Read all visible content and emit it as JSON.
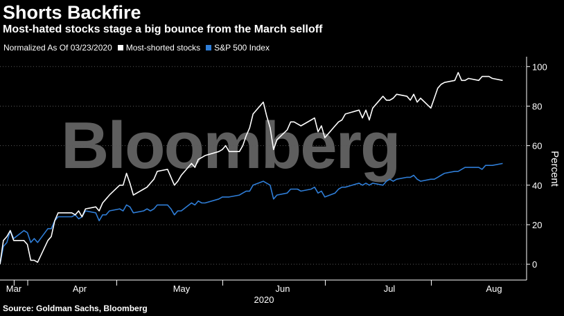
{
  "header": {
    "title": "Shorts Backfire",
    "subtitle": "Most-hated stocks stage a big bounce from the March selloff"
  },
  "legend": {
    "note": "Normalized As Of 03/23/2020",
    "series1": "Most-shorted stocks",
    "series2": "S&P 500 Index"
  },
  "source": "Source: Goldman Sachs, Bloomberg",
  "watermark": "Bloomberg",
  "colors": {
    "background": "#000000",
    "most_shorted": "#ffffff",
    "sp500": "#2f7ed8",
    "grid": "#5a5a5a"
  },
  "chart_data": {
    "type": "line",
    "title": "Shorts Backfire",
    "subtitle": "Most-hated stocks stage a big bounce from the March selloff",
    "xlabel": "2020",
    "ylabel": "Percent",
    "x_tick_labels": [
      "Mar",
      "Apr",
      "May",
      "Jun",
      "Jul",
      "Aug"
    ],
    "x_tick_dates": [
      "2020-03-23",
      "2020-04-01",
      "2020-05-01",
      "2020-06-01",
      "2020-07-01",
      "2020-08-01"
    ],
    "y_axis_position": "right",
    "y_ticks": [
      0,
      20,
      40,
      60,
      80,
      100
    ],
    "ylim": [
      -8,
      105
    ],
    "xlim": [
      "2020-03-23",
      "2020-08-24"
    ],
    "grid": "horizontal dotted",
    "legend_position": "top-left",
    "series": [
      {
        "name": "Most-shorted stocks",
        "color": "#ffffff",
        "points": [
          [
            "2020-03-23",
            0
          ],
          [
            "2020-03-24",
            12
          ],
          [
            "2020-03-25",
            14
          ],
          [
            "2020-03-26",
            17
          ],
          [
            "2020-03-27",
            12
          ],
          [
            "2020-03-30",
            12
          ],
          [
            "2020-03-31",
            10
          ],
          [
            "2020-04-01",
            2
          ],
          [
            "2020-04-02",
            2
          ],
          [
            "2020-04-03",
            1
          ],
          [
            "2020-04-06",
            12
          ],
          [
            "2020-04-07",
            14
          ],
          [
            "2020-04-08",
            22
          ],
          [
            "2020-04-09",
            26
          ],
          [
            "2020-04-13",
            26
          ],
          [
            "2020-04-14",
            25
          ],
          [
            "2020-04-15",
            27
          ],
          [
            "2020-04-16",
            24
          ],
          [
            "2020-04-17",
            28
          ],
          [
            "2020-04-20",
            29
          ],
          [
            "2020-04-21",
            27
          ],
          [
            "2020-04-22",
            31
          ],
          [
            "2020-04-23",
            33
          ],
          [
            "2020-04-24",
            35
          ],
          [
            "2020-04-27",
            40
          ],
          [
            "2020-04-28",
            40
          ],
          [
            "2020-04-29",
            46
          ],
          [
            "2020-04-30",
            41
          ],
          [
            "2020-05-01",
            35
          ],
          [
            "2020-05-04",
            38
          ],
          [
            "2020-05-05",
            39
          ],
          [
            "2020-05-06",
            41
          ],
          [
            "2020-05-07",
            43
          ],
          [
            "2020-05-08",
            47
          ],
          [
            "2020-05-11",
            48
          ],
          [
            "2020-05-12",
            44
          ],
          [
            "2020-05-13",
            40
          ],
          [
            "2020-05-14",
            42
          ],
          [
            "2020-05-15",
            45
          ],
          [
            "2020-05-18",
            51
          ],
          [
            "2020-05-19",
            49
          ],
          [
            "2020-05-20",
            53
          ],
          [
            "2020-05-21",
            54
          ],
          [
            "2020-05-22",
            55
          ],
          [
            "2020-05-26",
            57
          ],
          [
            "2020-05-27",
            58
          ],
          [
            "2020-05-28",
            60
          ],
          [
            "2020-05-29",
            57
          ],
          [
            "2020-06-01",
            57
          ],
          [
            "2020-06-02",
            60
          ],
          [
            "2020-06-03",
            65
          ],
          [
            "2020-06-04",
            69
          ],
          [
            "2020-06-05",
            76
          ],
          [
            "2020-06-08",
            82
          ],
          [
            "2020-06-09",
            75
          ],
          [
            "2020-06-10",
            69
          ],
          [
            "2020-06-11",
            58
          ],
          [
            "2020-06-12",
            63
          ],
          [
            "2020-06-15",
            68
          ],
          [
            "2020-06-16",
            72
          ],
          [
            "2020-06-17",
            72
          ],
          [
            "2020-06-18",
            71
          ],
          [
            "2020-06-19",
            70
          ],
          [
            "2020-06-22",
            73
          ],
          [
            "2020-06-23",
            74
          ],
          [
            "2020-06-24",
            67
          ],
          [
            "2020-06-25",
            70
          ],
          [
            "2020-06-26",
            64
          ],
          [
            "2020-06-29",
            70
          ],
          [
            "2020-06-30",
            72
          ],
          [
            "2020-07-01",
            73
          ],
          [
            "2020-07-02",
            76
          ],
          [
            "2020-07-06",
            78
          ],
          [
            "2020-07-07",
            74
          ],
          [
            "2020-07-08",
            78
          ],
          [
            "2020-07-09",
            73
          ],
          [
            "2020-07-10",
            79
          ],
          [
            "2020-07-13",
            85
          ],
          [
            "2020-07-14",
            83
          ],
          [
            "2020-07-15",
            83
          ],
          [
            "2020-07-16",
            84
          ],
          [
            "2020-07-17",
            86
          ],
          [
            "2020-07-20",
            85
          ],
          [
            "2020-07-21",
            83
          ],
          [
            "2020-07-22",
            86
          ],
          [
            "2020-07-23",
            82
          ],
          [
            "2020-07-24",
            84
          ],
          [
            "2020-07-27",
            79
          ],
          [
            "2020-07-28",
            84
          ],
          [
            "2020-07-29",
            89
          ],
          [
            "2020-07-30",
            91
          ],
          [
            "2020-07-31",
            92
          ],
          [
            "2020-08-03",
            93
          ],
          [
            "2020-08-04",
            97
          ],
          [
            "2020-08-05",
            93
          ],
          [
            "2020-08-06",
            93
          ],
          [
            "2020-08-07",
            94
          ],
          [
            "2020-08-10",
            93
          ],
          [
            "2020-08-11",
            95
          ],
          [
            "2020-08-12",
            95
          ],
          [
            "2020-08-13",
            95
          ],
          [
            "2020-08-14",
            94
          ],
          [
            "2020-08-17",
            93
          ]
        ]
      },
      {
        "name": "S&P 500 Index",
        "color": "#2f7ed8",
        "points": [
          [
            "2020-03-23",
            0
          ],
          [
            "2020-03-24",
            9
          ],
          [
            "2020-03-25",
            11
          ],
          [
            "2020-03-26",
            17
          ],
          [
            "2020-03-27",
            13
          ],
          [
            "2020-03-30",
            17
          ],
          [
            "2020-03-31",
            16
          ],
          [
            "2020-04-01",
            11
          ],
          [
            "2020-04-02",
            13
          ],
          [
            "2020-04-03",
            11
          ],
          [
            "2020-04-06",
            18
          ],
          [
            "2020-04-07",
            18
          ],
          [
            "2020-04-08",
            22
          ],
          [
            "2020-04-09",
            24
          ],
          [
            "2020-04-13",
            24
          ],
          [
            "2020-04-14",
            25
          ],
          [
            "2020-04-15",
            23
          ],
          [
            "2020-04-16",
            24
          ],
          [
            "2020-04-17",
            27
          ],
          [
            "2020-04-20",
            26
          ],
          [
            "2020-04-21",
            22
          ],
          [
            "2020-04-22",
            25
          ],
          [
            "2020-04-23",
            25
          ],
          [
            "2020-04-24",
            27
          ],
          [
            "2020-04-27",
            28
          ],
          [
            "2020-04-28",
            27
          ],
          [
            "2020-04-29",
            30
          ],
          [
            "2020-04-30",
            29
          ],
          [
            "2020-05-01",
            26
          ],
          [
            "2020-05-04",
            27
          ],
          [
            "2020-05-05",
            28
          ],
          [
            "2020-05-06",
            27
          ],
          [
            "2020-05-07",
            28
          ],
          [
            "2020-05-08",
            30
          ],
          [
            "2020-05-11",
            30
          ],
          [
            "2020-05-12",
            28
          ],
          [
            "2020-05-13",
            25
          ],
          [
            "2020-05-14",
            27
          ],
          [
            "2020-05-15",
            27
          ],
          [
            "2020-05-18",
            31
          ],
          [
            "2020-05-19",
            30
          ],
          [
            "2020-05-20",
            32
          ],
          [
            "2020-05-21",
            31
          ],
          [
            "2020-05-22",
            31
          ],
          [
            "2020-05-26",
            33
          ],
          [
            "2020-05-27",
            34
          ],
          [
            "2020-05-28",
            34
          ],
          [
            "2020-05-29",
            34
          ],
          [
            "2020-06-01",
            35
          ],
          [
            "2020-06-02",
            36
          ],
          [
            "2020-06-03",
            37
          ],
          [
            "2020-06-04",
            37
          ],
          [
            "2020-06-05",
            40
          ],
          [
            "2020-06-08",
            42
          ],
          [
            "2020-06-09",
            41
          ],
          [
            "2020-06-10",
            40
          ],
          [
            "2020-06-11",
            33
          ],
          [
            "2020-06-12",
            35
          ],
          [
            "2020-06-15",
            36
          ],
          [
            "2020-06-16",
            38
          ],
          [
            "2020-06-17",
            38
          ],
          [
            "2020-06-18",
            38
          ],
          [
            "2020-06-19",
            37
          ],
          [
            "2020-06-22",
            38
          ],
          [
            "2020-06-23",
            39
          ],
          [
            "2020-06-24",
            36
          ],
          [
            "2020-06-25",
            37
          ],
          [
            "2020-06-26",
            34
          ],
          [
            "2020-06-29",
            36
          ],
          [
            "2020-06-30",
            38
          ],
          [
            "2020-07-01",
            39
          ],
          [
            "2020-07-02",
            39
          ],
          [
            "2020-07-06",
            41
          ],
          [
            "2020-07-07",
            40
          ],
          [
            "2020-07-08",
            41
          ],
          [
            "2020-07-09",
            40
          ],
          [
            "2020-07-10",
            41
          ],
          [
            "2020-07-13",
            40
          ],
          [
            "2020-07-14",
            42
          ],
          [
            "2020-07-15",
            43
          ],
          [
            "2020-07-16",
            42
          ],
          [
            "2020-07-17",
            43
          ],
          [
            "2020-07-20",
            44
          ],
          [
            "2020-07-21",
            44
          ],
          [
            "2020-07-22",
            45
          ],
          [
            "2020-07-23",
            43
          ],
          [
            "2020-07-24",
            42
          ],
          [
            "2020-07-27",
            43
          ],
          [
            "2020-07-28",
            43
          ],
          [
            "2020-07-29",
            44
          ],
          [
            "2020-07-30",
            45
          ],
          [
            "2020-07-31",
            46
          ],
          [
            "2020-08-03",
            47
          ],
          [
            "2020-08-04",
            47
          ],
          [
            "2020-08-05",
            48
          ],
          [
            "2020-08-06",
            49
          ],
          [
            "2020-08-07",
            49
          ],
          [
            "2020-08-10",
            49
          ],
          [
            "2020-08-11",
            48
          ],
          [
            "2020-08-12",
            50
          ],
          [
            "2020-08-13",
            50
          ],
          [
            "2020-08-14",
            50
          ],
          [
            "2020-08-17",
            51
          ]
        ]
      }
    ]
  }
}
